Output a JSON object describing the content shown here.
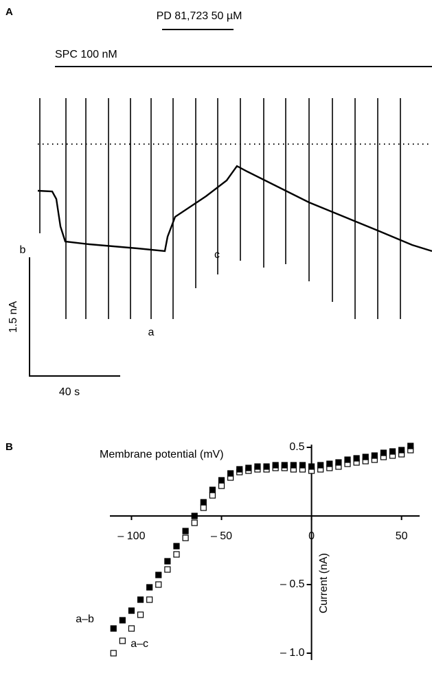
{
  "chart_data": [
    {
      "type": "trace",
      "panel_label": "A",
      "drug_labels": [
        "PD 81,723 50 µM",
        "SPC 100 nM"
      ],
      "trace_labels": [
        "b",
        "c",
        "a"
      ],
      "scale_bar_labels": [
        "1.5 nA",
        "40 s"
      ]
    },
    {
      "type": "scatter",
      "panel_label": "B",
      "x_label": "Membrane potential (mV)",
      "y_label": "Current (nA)",
      "x": [
        -110,
        -105,
        -100,
        -95,
        -90,
        -85,
        -80,
        -75,
        -70,
        -65,
        -60,
        -55,
        -50,
        -45,
        -40,
        -35,
        -30,
        -25,
        -20,
        -15,
        -10,
        -5,
        0,
        5,
        10,
        15,
        20,
        25,
        30,
        35,
        40,
        45,
        50,
        55
      ],
      "series": [
        {
          "name": "a–b",
          "color": "#000000",
          "marker": "filled-square",
          "values": [
            -0.82,
            -0.76,
            -0.69,
            -0.61,
            -0.52,
            -0.43,
            -0.33,
            -0.22,
            -0.11,
            0.0,
            0.1,
            0.19,
            0.26,
            0.31,
            0.34,
            0.35,
            0.36,
            0.36,
            0.37,
            0.37,
            0.37,
            0.37,
            0.36,
            0.37,
            0.38,
            0.39,
            0.41,
            0.42,
            0.43,
            0.44,
            0.46,
            0.47,
            0.48,
            0.51
          ]
        },
        {
          "name": "a–c",
          "color": "#000000",
          "marker": "open-square",
          "values": [
            -1.0,
            -0.91,
            -0.82,
            -0.72,
            -0.61,
            -0.5,
            -0.39,
            -0.28,
            -0.16,
            -0.05,
            0.06,
            0.15,
            0.22,
            0.28,
            0.32,
            0.33,
            0.34,
            0.34,
            0.35,
            0.35,
            0.34,
            0.34,
            0.33,
            0.34,
            0.35,
            0.36,
            0.38,
            0.39,
            0.4,
            0.41,
            0.43,
            0.44,
            0.45,
            0.48
          ]
        }
      ],
      "xlim": [
        -112,
        57
      ],
      "ylim": [
        -1.05,
        0.52
      ],
      "xticks": [
        {
          "value": -100,
          "label": "– 100"
        },
        {
          "value": -50,
          "label": "– 50"
        },
        0,
        50
      ],
      "yticks": [
        0.5,
        {
          "value": -0.5,
          "label": "– 0.5"
        },
        {
          "value": -1.0,
          "label": "– 1.0"
        }
      ]
    }
  ]
}
